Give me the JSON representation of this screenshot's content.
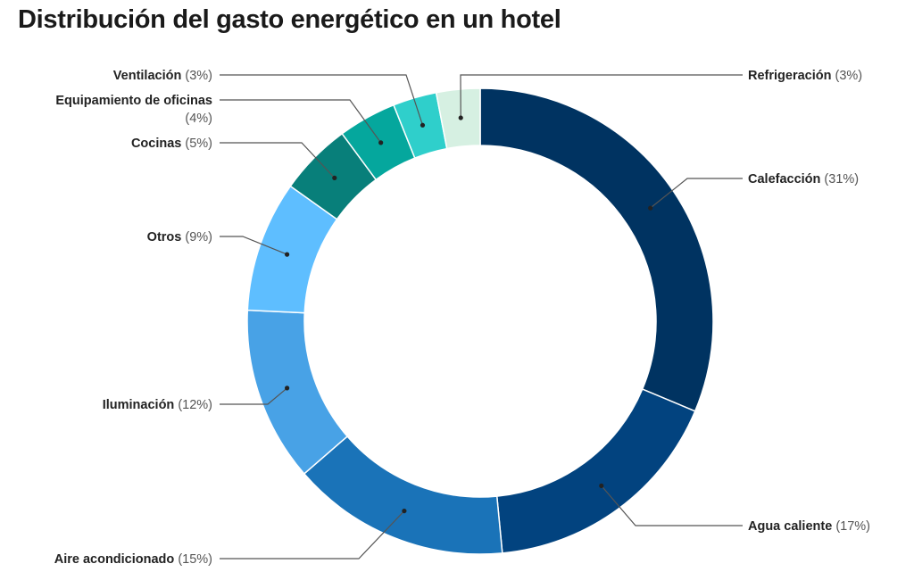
{
  "chart_data": {
    "type": "pie",
    "variant": "donut",
    "title": "Distribución del gasto energético en un hotel",
    "slices": [
      {
        "name": "Calefacción",
        "value": 31,
        "percent_label": "(31%)",
        "color": "#003361"
      },
      {
        "name": "Agua caliente",
        "value": 17,
        "percent_label": "(17%)",
        "color": "#02437f"
      },
      {
        "name": "Aire acondicionado",
        "value": 15,
        "percent_label": "(15%)",
        "color": "#1a73b8"
      },
      {
        "name": "Iluminación",
        "value": 12,
        "percent_label": "(12%)",
        "color": "#48a2e6"
      },
      {
        "name": "Otros",
        "value": 9,
        "percent_label": "(9%)",
        "color": "#5ebeff"
      },
      {
        "name": "Cocinas",
        "value": 5,
        "percent_label": "(5%)",
        "color": "#087f7a"
      },
      {
        "name": "Equipamiento de oficinas",
        "value": 4,
        "percent_label": "(4%)",
        "color": "#05a79d"
      },
      {
        "name": "Ventilación",
        "value": 3,
        "percent_label": "(3%)",
        "color": "#2fcfcb"
      },
      {
        "name": "Refrigeración",
        "value": 3,
        "percent_label": "(3%)",
        "color": "#d6f0e2"
      }
    ]
  }
}
